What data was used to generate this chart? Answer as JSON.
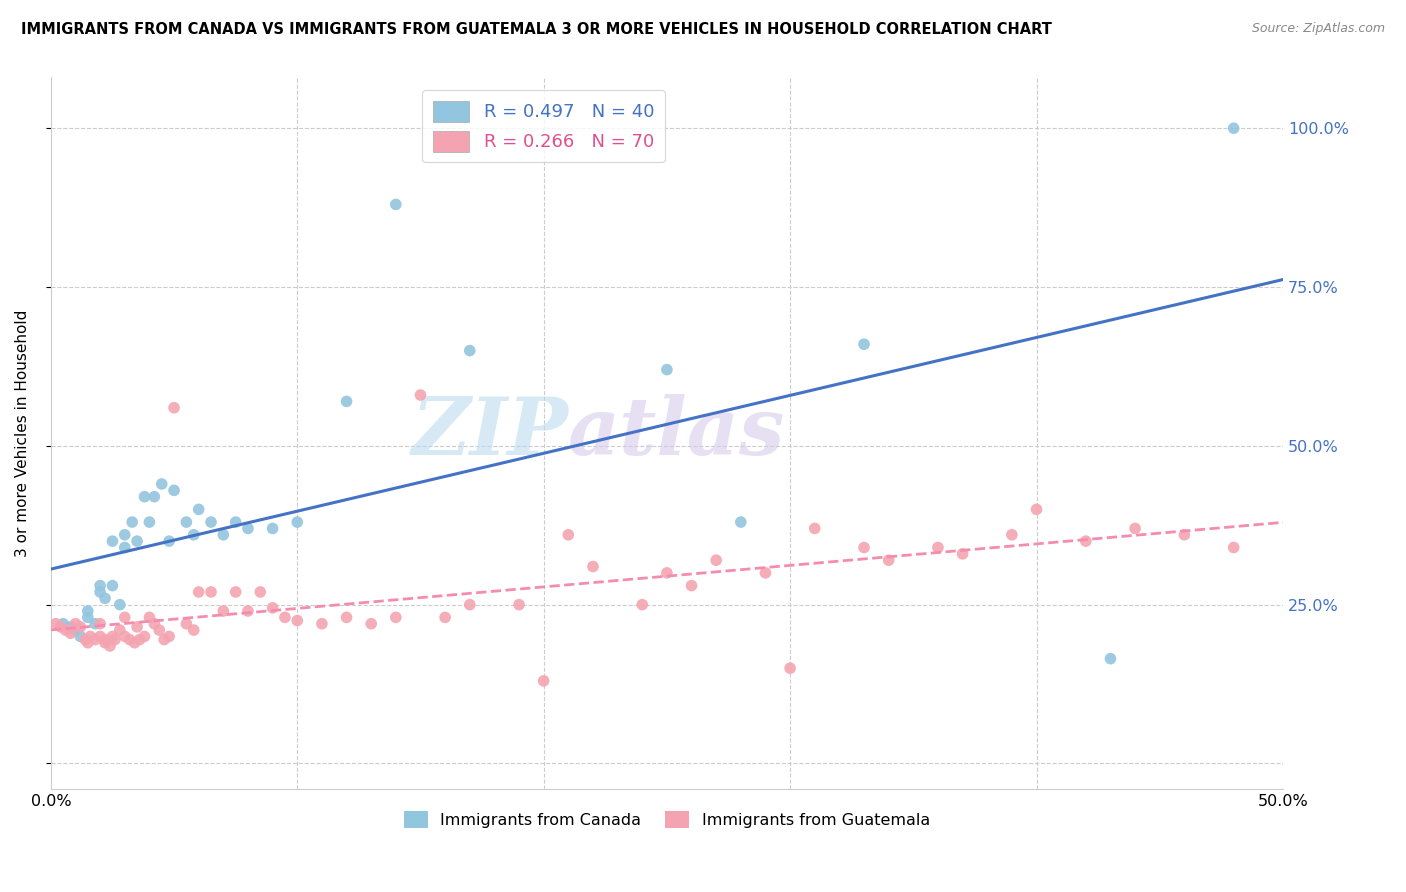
{
  "title": "IMMIGRANTS FROM CANADA VS IMMIGRANTS FROM GUATEMALA 3 OR MORE VEHICLES IN HOUSEHOLD CORRELATION CHART",
  "source": "Source: ZipAtlas.com",
  "ylabel": "3 or more Vehicles in Household",
  "y_ticks": [
    0.0,
    0.25,
    0.5,
    0.75,
    1.0
  ],
  "y_tick_labels": [
    "",
    "25.0%",
    "50.0%",
    "75.0%",
    "100.0%"
  ],
  "x_range": [
    0.0,
    0.5
  ],
  "y_range": [
    -0.04,
    1.08
  ],
  "canada_R": 0.497,
  "canada_N": 40,
  "guatemala_R": 0.266,
  "guatemala_N": 70,
  "canada_color": "#92c5de",
  "guatemala_color": "#f4a4b0",
  "canada_line_color": "#4472c4",
  "guatemala_line_color": "#f48cb0",
  "watermark_zip": "ZIP",
  "watermark_atlas": "atlas",
  "canada_x": [
    0.005,
    0.008,
    0.01,
    0.012,
    0.015,
    0.015,
    0.018,
    0.02,
    0.02,
    0.022,
    0.025,
    0.025,
    0.028,
    0.03,
    0.03,
    0.033,
    0.035,
    0.038,
    0.04,
    0.042,
    0.045,
    0.048,
    0.05,
    0.055,
    0.058,
    0.06,
    0.065,
    0.07,
    0.075,
    0.08,
    0.09,
    0.1,
    0.12,
    0.14,
    0.17,
    0.25,
    0.28,
    0.33,
    0.43,
    0.48
  ],
  "canada_y": [
    0.22,
    0.215,
    0.21,
    0.2,
    0.24,
    0.23,
    0.22,
    0.28,
    0.27,
    0.26,
    0.35,
    0.28,
    0.25,
    0.36,
    0.34,
    0.38,
    0.35,
    0.42,
    0.38,
    0.42,
    0.44,
    0.35,
    0.43,
    0.38,
    0.36,
    0.4,
    0.38,
    0.36,
    0.38,
    0.37,
    0.37,
    0.38,
    0.57,
    0.88,
    0.65,
    0.62,
    0.38,
    0.66,
    0.165,
    1.0
  ],
  "guatemala_x": [
    0.002,
    0.004,
    0.006,
    0.008,
    0.01,
    0.012,
    0.014,
    0.015,
    0.016,
    0.018,
    0.02,
    0.02,
    0.022,
    0.022,
    0.024,
    0.025,
    0.026,
    0.028,
    0.03,
    0.03,
    0.032,
    0.034,
    0.035,
    0.036,
    0.038,
    0.04,
    0.042,
    0.044,
    0.046,
    0.048,
    0.05,
    0.055,
    0.058,
    0.06,
    0.065,
    0.07,
    0.075,
    0.08,
    0.085,
    0.09,
    0.095,
    0.1,
    0.11,
    0.12,
    0.13,
    0.14,
    0.15,
    0.16,
    0.17,
    0.19,
    0.2,
    0.21,
    0.22,
    0.24,
    0.25,
    0.26,
    0.27,
    0.29,
    0.3,
    0.31,
    0.33,
    0.34,
    0.36,
    0.37,
    0.39,
    0.4,
    0.42,
    0.44,
    0.46,
    0.48
  ],
  "guatemala_y": [
    0.22,
    0.215,
    0.21,
    0.205,
    0.22,
    0.215,
    0.195,
    0.19,
    0.2,
    0.195,
    0.22,
    0.2,
    0.195,
    0.19,
    0.185,
    0.2,
    0.195,
    0.21,
    0.23,
    0.2,
    0.195,
    0.19,
    0.215,
    0.195,
    0.2,
    0.23,
    0.22,
    0.21,
    0.195,
    0.2,
    0.56,
    0.22,
    0.21,
    0.27,
    0.27,
    0.24,
    0.27,
    0.24,
    0.27,
    0.245,
    0.23,
    0.225,
    0.22,
    0.23,
    0.22,
    0.23,
    0.58,
    0.23,
    0.25,
    0.25,
    0.13,
    0.36,
    0.31,
    0.25,
    0.3,
    0.28,
    0.32,
    0.3,
    0.15,
    0.37,
    0.34,
    0.32,
    0.34,
    0.33,
    0.36,
    0.4,
    0.35,
    0.37,
    0.36,
    0.34
  ]
}
